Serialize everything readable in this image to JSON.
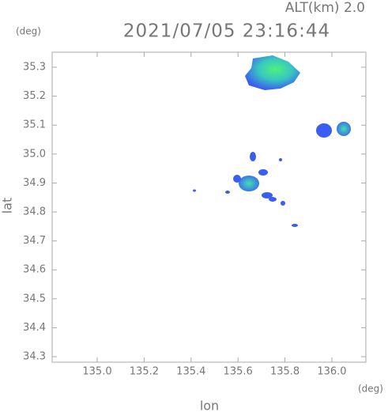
{
  "chart_data": {
    "type": "map",
    "title": "2021/07/05 23:16:44",
    "altitude_label": "ALT(km) 2.0",
    "y_unit": "(deg)",
    "x_unit": "(deg)",
    "xlabel": "lon",
    "ylabel": "lat",
    "xlim": [
      134.808,
      136.145
    ],
    "ylim": [
      34.281,
      35.352
    ],
    "xticks": [
      {
        "value": 135,
        "label": "135.0"
      },
      135.2,
      135.4,
      135.6,
      135.8,
      {
        "value": 136,
        "label": "136.0"
      }
    ],
    "yticks": [
      34.3,
      34.4,
      34.5,
      34.6,
      34.7,
      34.8,
      34.9,
      {
        "value": 35,
        "label": "35.0"
      },
      35.1,
      35.2,
      35.3
    ]
  }
}
